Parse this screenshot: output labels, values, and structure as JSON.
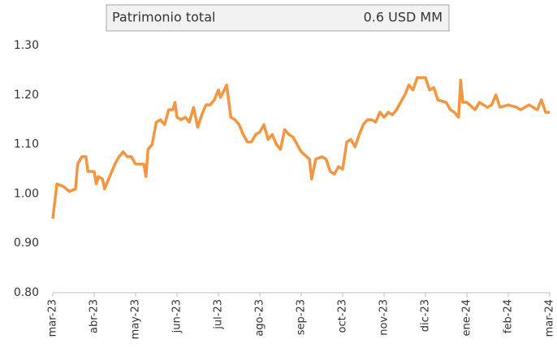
{
  "chart_data": {
    "type": "line",
    "header": {
      "label": "Patrimonio total",
      "value": "0.6 USD MM"
    },
    "series": [
      {
        "color": "#f4963f",
        "x": [
          0,
          0.1,
          0.25,
          0.4,
          0.55,
          0.6,
          0.7,
          0.8,
          0.85,
          1.0,
          1.05,
          1.1,
          1.2,
          1.25,
          1.3,
          1.4,
          1.5,
          1.6,
          1.7,
          1.8,
          1.9,
          2.0,
          2.2,
          2.25,
          2.3,
          2.4,
          2.5,
          2.6,
          2.7,
          2.8,
          2.9,
          2.95,
          3.0,
          3.1,
          3.2,
          3.3,
          3.4,
          3.5,
          3.6,
          3.7,
          3.8,
          3.9,
          4.0,
          4.05,
          4.2,
          4.3,
          4.4,
          4.5,
          4.6,
          4.7,
          4.8,
          4.9,
          5.0,
          5.1,
          5.2,
          5.3,
          5.4,
          5.5,
          5.6,
          5.7,
          5.8,
          6.0,
          6.2,
          6.25,
          6.35,
          6.5,
          6.6,
          6.7,
          6.8,
          6.9,
          7.0,
          7.1,
          7.2,
          7.3,
          7.4,
          7.5,
          7.6,
          7.7,
          7.8,
          7.9,
          8.0,
          8.1,
          8.2,
          8.3,
          8.5,
          8.6,
          8.7,
          8.8,
          9.0,
          9.1,
          9.2,
          9.3,
          9.5,
          9.6,
          9.7,
          9.8,
          9.85,
          9.9,
          10.0,
          10.2,
          10.3,
          10.5,
          10.6,
          10.7,
          10.8,
          11.0,
          11.2,
          11.3,
          11.5,
          11.7,
          11.8,
          11.9,
          12.0
        ],
        "values": [
          0.95,
          1.02,
          1.015,
          1.005,
          1.01,
          1.06,
          1.075,
          1.075,
          1.045,
          1.045,
          1.02,
          1.035,
          1.03,
          1.01,
          1.02,
          1.04,
          1.06,
          1.075,
          1.085,
          1.075,
          1.075,
          1.06,
          1.06,
          1.035,
          1.09,
          1.1,
          1.145,
          1.15,
          1.14,
          1.17,
          1.17,
          1.185,
          1.155,
          1.15,
          1.155,
          1.145,
          1.175,
          1.135,
          1.16,
          1.18,
          1.18,
          1.19,
          1.21,
          1.195,
          1.22,
          1.155,
          1.15,
          1.14,
          1.12,
          1.105,
          1.105,
          1.12,
          1.125,
          1.14,
          1.11,
          1.12,
          1.1,
          1.09,
          1.13,
          1.12,
          1.115,
          1.085,
          1.07,
          1.03,
          1.07,
          1.075,
          1.07,
          1.045,
          1.04,
          1.055,
          1.05,
          1.105,
          1.11,
          1.095,
          1.12,
          1.14,
          1.15,
          1.15,
          1.145,
          1.165,
          1.155,
          1.165,
          1.16,
          1.17,
          1.2,
          1.22,
          1.21,
          1.235,
          1.235,
          1.21,
          1.215,
          1.19,
          1.185,
          1.17,
          1.165,
          1.155,
          1.23,
          1.185,
          1.185,
          1.17,
          1.185,
          1.175,
          1.18,
          1.2,
          1.175,
          1.18,
          1.175,
          1.17,
          1.18,
          1.17,
          1.19,
          1.165,
          1.165
        ]
      }
    ],
    "xlim": [
      0,
      12
    ],
    "xticks": [
      {
        "value": 0,
        "label": "mar-23"
      },
      {
        "value": 1,
        "label": "abr-23"
      },
      {
        "value": 2,
        "label": "may-23"
      },
      {
        "value": 3,
        "label": "jun-23"
      },
      {
        "value": 4,
        "label": "jul-23"
      },
      {
        "value": 5,
        "label": "ago-23"
      },
      {
        "value": 6,
        "label": "sep-23"
      },
      {
        "value": 7,
        "label": "oct-23"
      },
      {
        "value": 8,
        "label": "nov-23"
      },
      {
        "value": 9,
        "label": "dic-23"
      },
      {
        "value": 10,
        "label": "ene-24"
      },
      {
        "value": 11,
        "label": "feb-24"
      },
      {
        "value": 12,
        "label": "mar-24"
      }
    ],
    "ylim": [
      0.8,
      1.3
    ],
    "yticks": [
      {
        "value": 0.8,
        "label": "0.80"
      },
      {
        "value": 0.9,
        "label": "0.90"
      },
      {
        "value": 1.0,
        "label": "1.00"
      },
      {
        "value": 1.1,
        "label": "1.10"
      },
      {
        "value": 1.2,
        "label": "1.20"
      },
      {
        "value": 1.3,
        "label": "1.30"
      }
    ]
  }
}
